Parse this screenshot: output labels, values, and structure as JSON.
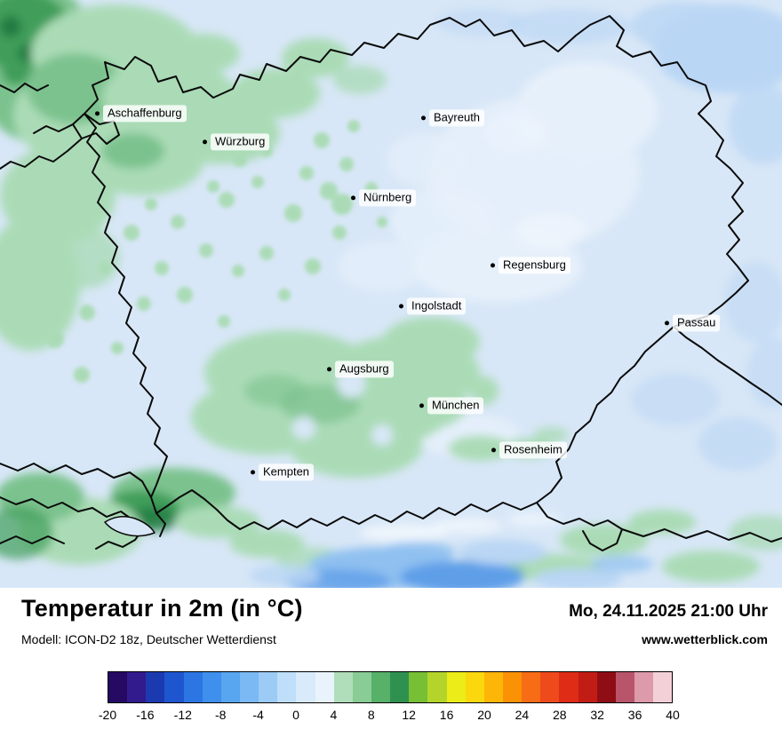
{
  "map": {
    "cities": [
      {
        "name": "Aschaffenburg"
      },
      {
        "name": "Würzburg"
      },
      {
        "name": "Bayreuth"
      },
      {
        "name": "Nürnberg"
      },
      {
        "name": "Regensburg"
      },
      {
        "name": "Ingolstadt"
      },
      {
        "name": "Passau"
      },
      {
        "name": "Augsburg"
      },
      {
        "name": "München"
      },
      {
        "name": "Rosenheim"
      },
      {
        "name": "Kempten"
      }
    ]
  },
  "footer": {
    "title": "Temperatur in 2m (in °C)",
    "datetime": "Mo, 24.11.2025 21:00 Uhr",
    "model": "Modell: ICON-D2 18z, Deutscher Wetterdienst",
    "website": "www.wetterblick.com"
  },
  "colorbar": {
    "unit": "°C",
    "min": -20,
    "max": 40,
    "tick_step": 4,
    "ticks": [
      "-20",
      "-16",
      "-12",
      "-8",
      "-4",
      "0",
      "4",
      "8",
      "12",
      "16",
      "20",
      "24",
      "28",
      "32",
      "36",
      "40"
    ],
    "colors": [
      "#250963",
      "#321b8d",
      "#1c3ab0",
      "#1e56cf",
      "#2b76e2",
      "#3e90ec",
      "#58a5f0",
      "#7ab9f3",
      "#9ccbf6",
      "#bedef9",
      "#d9eafa",
      "#e9f3fc",
      "#b0ddba",
      "#89cc96",
      "#57b169",
      "#2f9150",
      "#77bf34",
      "#b4d42b",
      "#ecec19",
      "#fbd70e",
      "#fdb508",
      "#fb9105",
      "#f66d16",
      "#ee4a1c",
      "#de2c17",
      "#c11d15",
      "#8f0e16",
      "#b9556b",
      "#dd9aab",
      "#f3d0d8"
    ]
  },
  "colors": {
    "map_base": "#d8e7f7",
    "border_line": "#0a0a0a",
    "green_light": "#aadbb6",
    "green_mid": "#7cc28e",
    "green_deep": "#3f9e5a"
  }
}
